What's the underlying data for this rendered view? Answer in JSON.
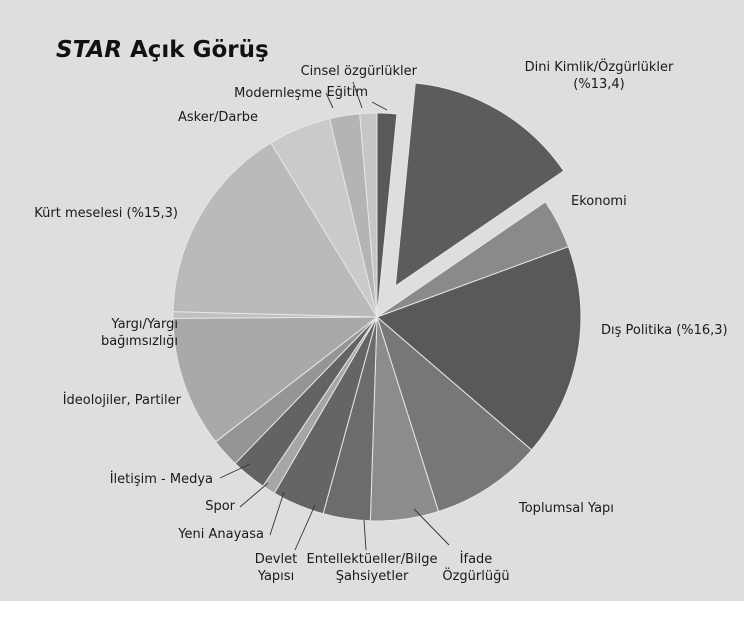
{
  "chart_data": {
    "type": "pie",
    "title_parts": [
      "STAR",
      " Açık Görüş"
    ],
    "slices": [
      {
        "label": "Eğitim",
        "value": 1.5,
        "color": "#595959"
      },
      {
        "label": "Dini Kimlik/Özgürlükler",
        "label_lines": [
          "Dini Kimlik/Özgürlükler",
          "(%13,4)"
        ],
        "value": 13.4,
        "color": "#5c5c5c",
        "exploded": true
      },
      {
        "label": "Ekonomi",
        "value": 3.8,
        "color": "#8a8a8a"
      },
      {
        "label": "Dış Politika (%16,3)",
        "value": 16.3,
        "color": "#595959"
      },
      {
        "label": "Toplumsal Yapı",
        "value": 8.5,
        "color": "#777777"
      },
      {
        "label": "İfade Özgürlüğü",
        "label_lines": [
          "İfade",
          "Özgürlüğü"
        ],
        "value": 5.2,
        "color": "#8c8c8c"
      },
      {
        "label": "Entellektüeller/Bilge Şahsiyetler",
        "label_lines": [
          "Entellektüeller/Bilge",
          "Şahsiyetler"
        ],
        "value": 3.6,
        "color": "#6c6c6c"
      },
      {
        "label": "Devlet Yapısı",
        "label_lines": [
          "Devlet",
          "Yapısı"
        ],
        "value": 4.0,
        "color": "#656565"
      },
      {
        "label": "Yeni Anayasa",
        "value": 1.0,
        "color": "#a6a6a6"
      },
      {
        "label": "Spor",
        "value": 2.7,
        "color": "#636363"
      },
      {
        "label": "İletişim - Medya",
        "value": 2.2,
        "color": "#959595"
      },
      {
        "label": "İdeolojiler, Partiler",
        "value": 10.0,
        "color": "#a9a9a9"
      },
      {
        "label": "Yargı/Yargı bağımsızlığı",
        "label_lines": [
          "Yargı/Yargı",
          "bağımsızlığı"
        ],
        "value": 0.5,
        "color": "#c0c0c0"
      },
      {
        "label": "Kürt meselesi (%15,3)",
        "value": 15.3,
        "color": "#bababa"
      },
      {
        "label": "Asker/Darbe",
        "value": 4.8,
        "color": "#cacaca"
      },
      {
        "label": "Modernleşme",
        "value": 2.3,
        "color": "#b4b4b4"
      },
      {
        "label": "Cinsel özgürlükler",
        "value": 1.3,
        "color": "#c6c6c6"
      }
    ]
  }
}
